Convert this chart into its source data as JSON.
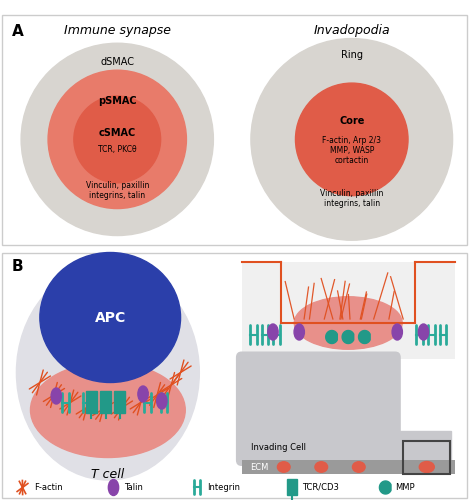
{
  "bg_color": "#ffffff",
  "color_dsmac": "#d8d5d0",
  "color_psmac": "#e87b6a",
  "color_csmac": "#e05c48",
  "color_ring": "#d8d5d0",
  "color_core": "#e05c48",
  "color_tcell_outer": "#e0e0e6",
  "color_tcell_inner": "#e8908a",
  "color_apc": "#2b3faa",
  "color_ecm": "#9a9a9a",
  "color_invading_cell": "#c8c8cc",
  "color_factin": "#e05020",
  "color_talin": "#8844aa",
  "color_integrin": "#2aaa99",
  "color_tcr": "#229988",
  "color_mmp": "#229988",
  "color_membrane": "#e05020",
  "label_A": "A",
  "label_B": "B",
  "title_IS": "Immune synapse",
  "title_Inv": "Invadopodia",
  "label_dsmac": "dSMAC",
  "label_psmac": "pSMAC",
  "label_csmac": "cSMAC",
  "label_csmac_sub": "TCR, PKCθ",
  "label_psmac_sub": "Vinculin, paxillin\nintegrins, talin",
  "label_ring": "Ring",
  "label_core": "Core",
  "label_core_sub": "F-actin, Arp 2/3\nMMP, WASP\ncortactin",
  "label_ring_sub": "Vinculin, paxillin\nintegrins, talin",
  "label_tcell": "T cell",
  "label_apc": "APC",
  "label_invading": "Invading Cell",
  "label_ecm": "ECM",
  "legend_factin": "F-actin",
  "legend_talin": "Talin",
  "legend_integrin": "Integrin",
  "legend_tcr": "TCR/CD3",
  "legend_mmp": "MMP"
}
